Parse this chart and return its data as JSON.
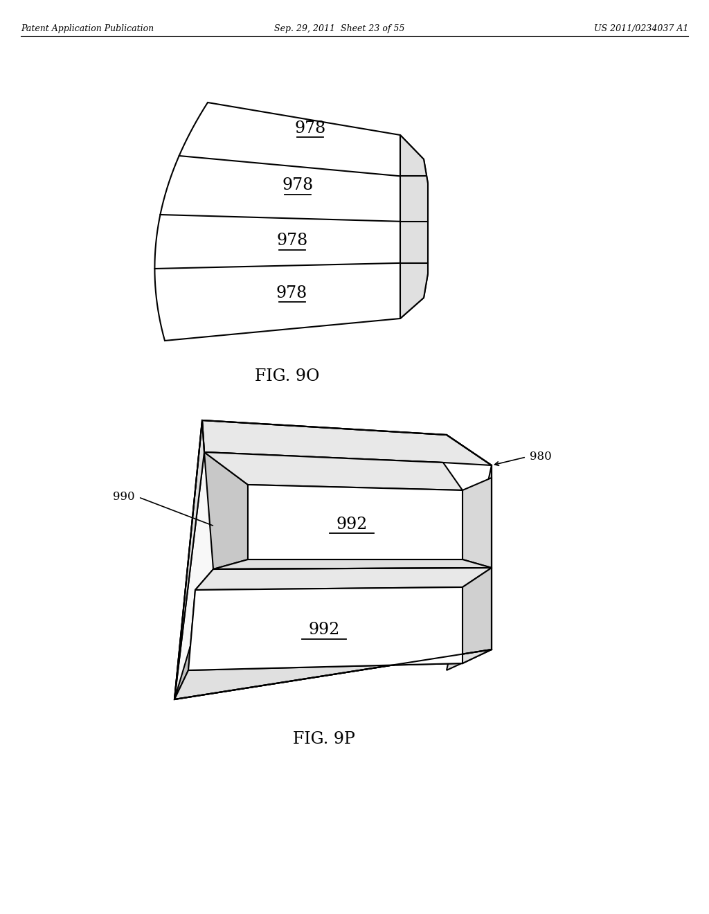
{
  "bg_color": "#ffffff",
  "line_color": "#000000",
  "header_left": "Patent Application Publication",
  "header_mid": "Sep. 29, 2011  Sheet 23 of 55",
  "header_right": "US 2011/0234037 A1",
  "fig1_caption": "FIG. 9O",
  "fig2_caption": "FIG. 9P",
  "label_978": "978",
  "label_980": "980",
  "label_990": "990",
  "label_992": "992"
}
